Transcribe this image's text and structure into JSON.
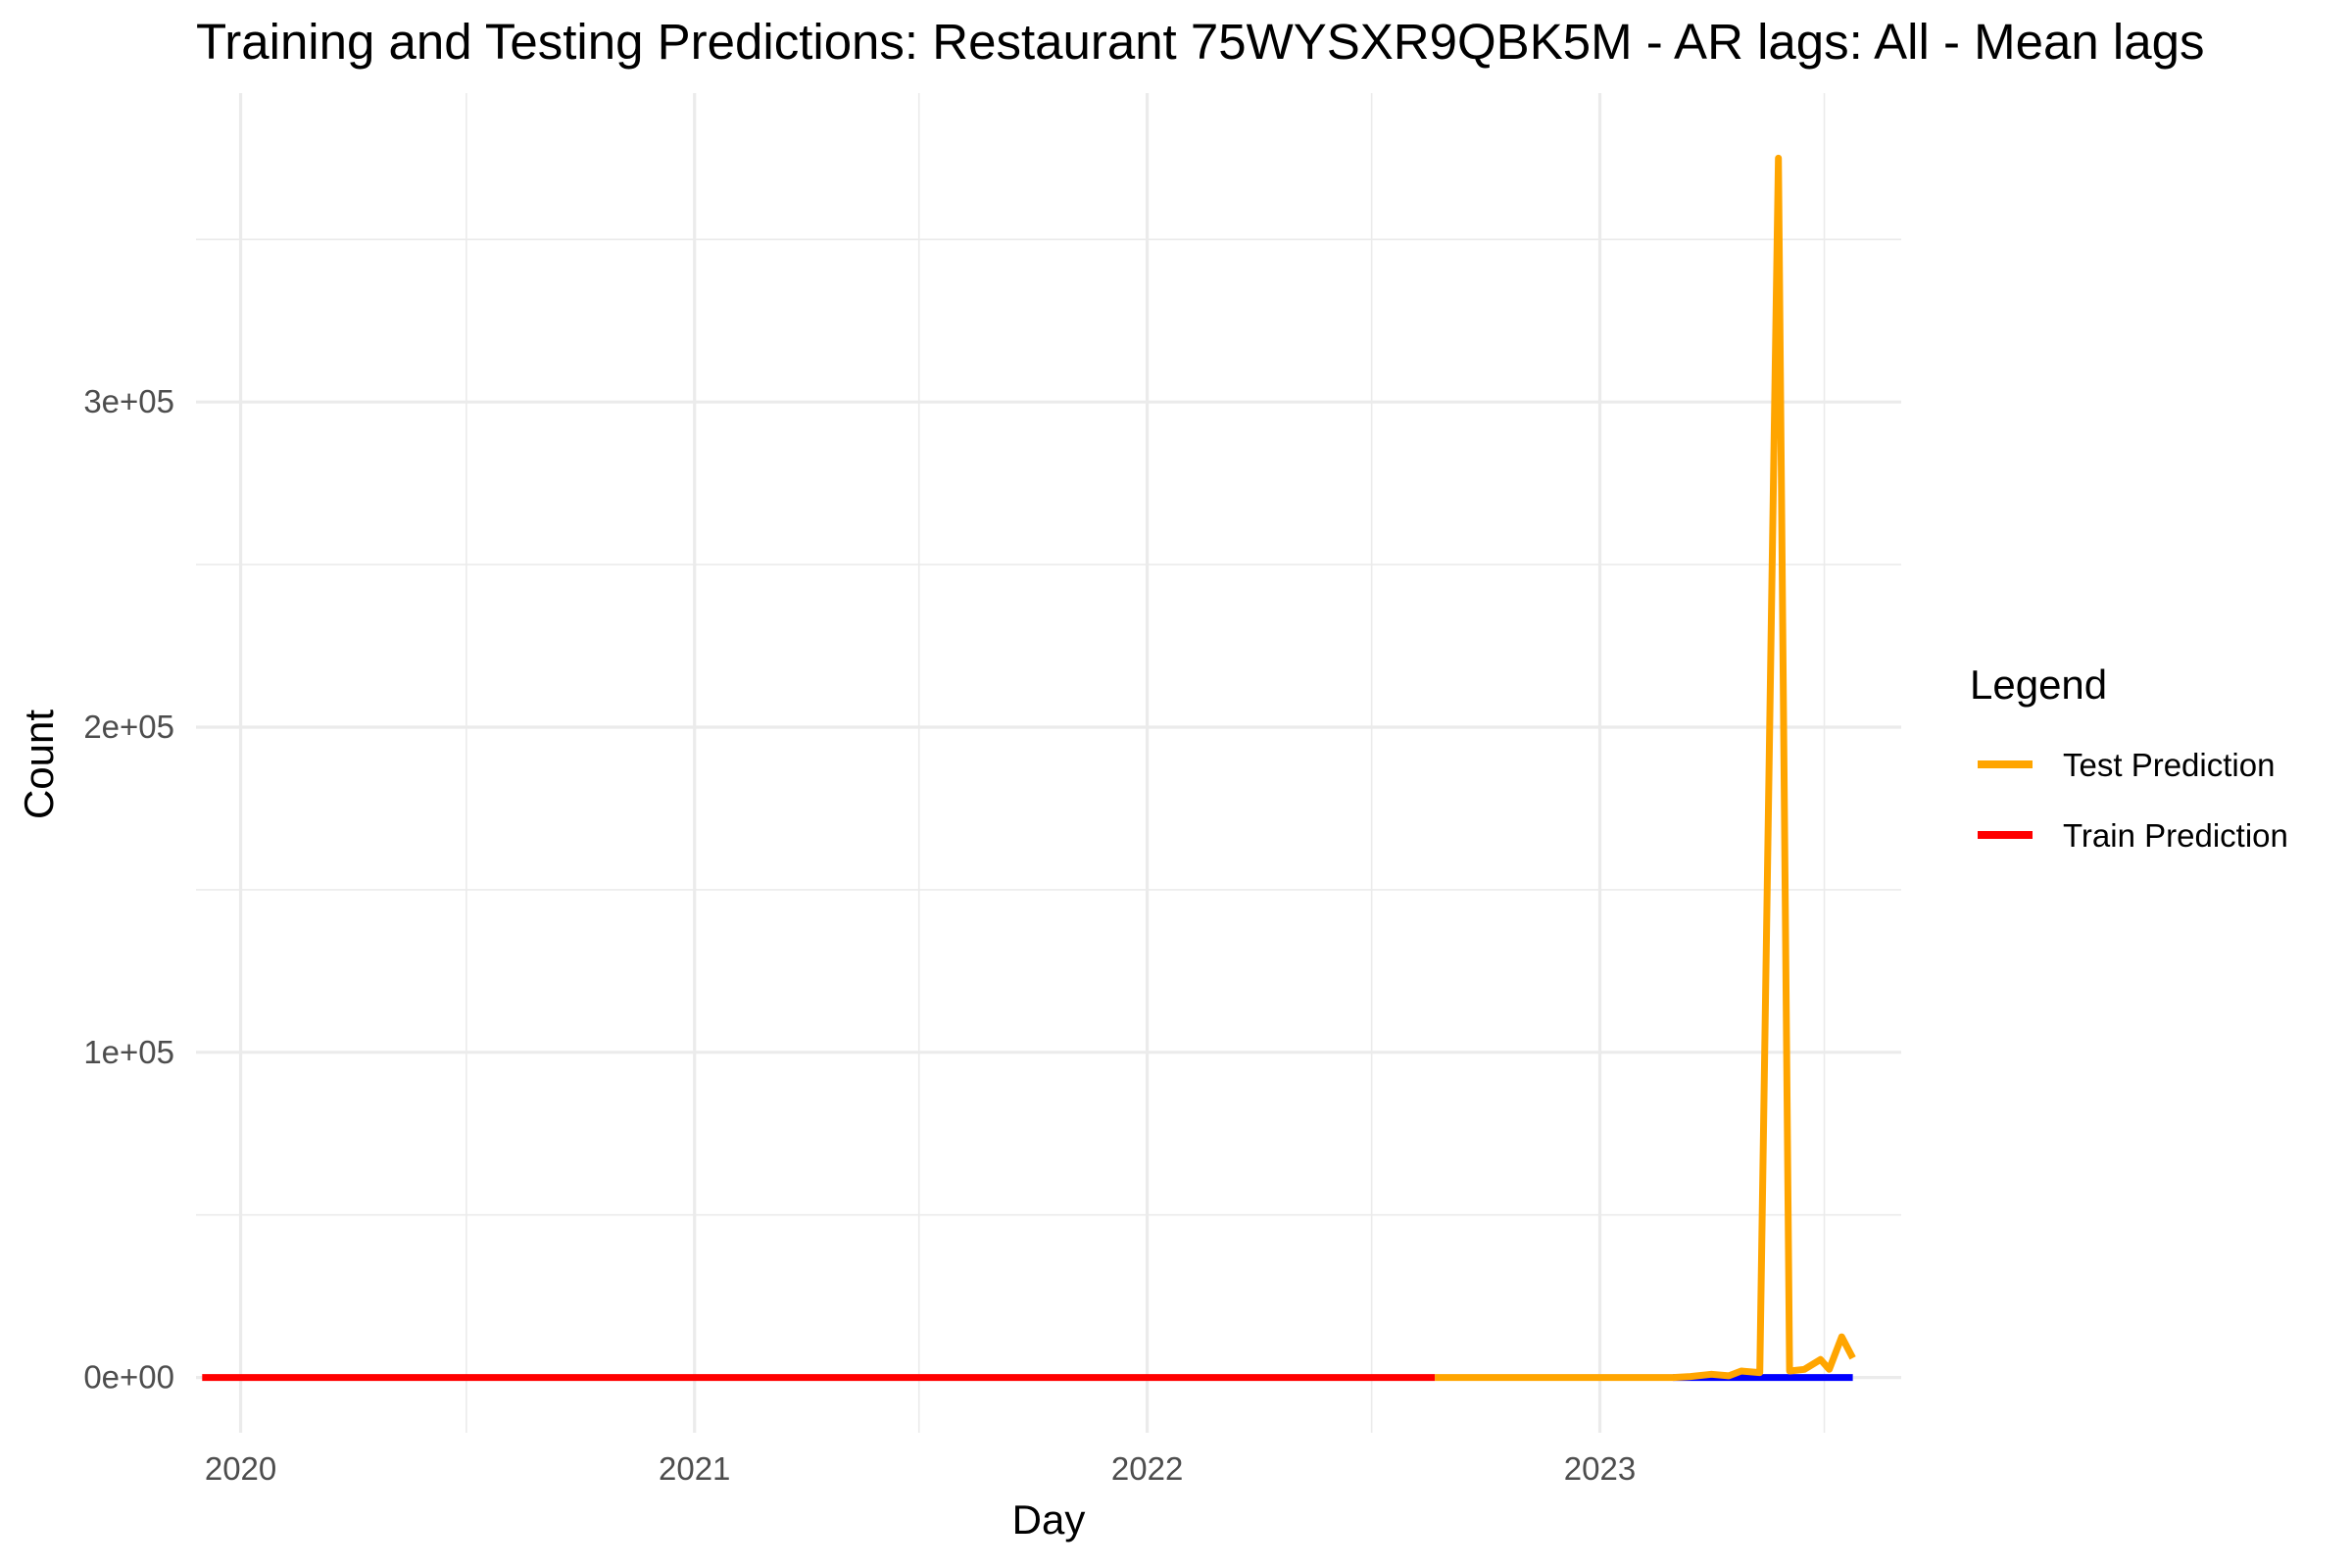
{
  "chart_data": {
    "type": "line",
    "title": "Training and Testing Predictions: Restaurant 75WYSXR9QBK5M - AR lags: All - Mean lags",
    "xlabel": "Day",
    "ylabel": "Count",
    "x_ticks": [
      "2020",
      "2021",
      "2022",
      "2023"
    ],
    "y_ticks": [
      "0e+00",
      "1e+05",
      "2e+05",
      "3e+05"
    ],
    "xlim": [
      "2019-11-26",
      "2023-09-01"
    ],
    "ylim": [
      -17000,
      395000
    ],
    "grid": true,
    "legend": {
      "title": "Legend",
      "position": "right",
      "entries": [
        {
          "label": "Test Prediction",
          "color": "#FFA500"
        },
        {
          "label": "Train Prediction",
          "color": "#FF0000"
        }
      ]
    },
    "series": [
      {
        "color": "#0000FF",
        "points": [
          [
            "2023-03-01",
            0
          ],
          [
            "2023-07-24",
            0
          ]
        ]
      },
      {
        "name": "Train Prediction",
        "color": "#FF0000",
        "points": [
          [
            "2019-12-01",
            0
          ],
          [
            "2022-08-21",
            0
          ]
        ]
      },
      {
        "name": "Test Prediction",
        "color": "#FFA500",
        "points": [
          [
            "2022-08-21",
            0
          ],
          [
            "2022-11-01",
            0
          ],
          [
            "2023-01-01",
            0
          ],
          [
            "2023-03-01",
            0
          ],
          [
            "2023-03-15",
            300
          ],
          [
            "2023-04-01",
            1000
          ],
          [
            "2023-04-15",
            500
          ],
          [
            "2023-04-25",
            2000
          ],
          [
            "2023-05-10",
            1500
          ],
          [
            "2023-05-25",
            375000
          ],
          [
            "2023-06-03",
            2000
          ],
          [
            "2023-06-15",
            2500
          ],
          [
            "2023-06-28",
            5500
          ],
          [
            "2023-07-05",
            2500
          ],
          [
            "2023-07-15",
            12500
          ],
          [
            "2023-07-24",
            6000
          ]
        ]
      }
    ]
  }
}
